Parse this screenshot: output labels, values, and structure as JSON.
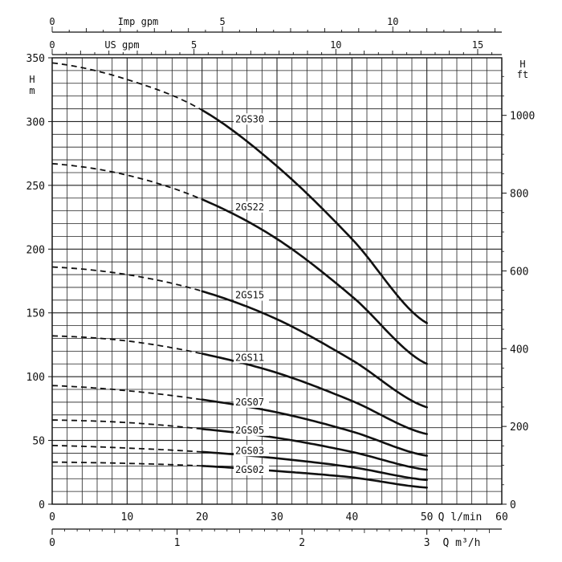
{
  "chart_data": {
    "type": "line",
    "axes": {
      "flow_lmin": {
        "label": "Q l/min",
        "min": 0,
        "max": 60,
        "ticks": [
          "0",
          "10",
          "20",
          "30",
          "40",
          "50",
          "60"
        ],
        "tick_values": [
          0,
          10,
          20,
          30,
          40,
          50,
          60
        ]
      },
      "flow_m3h": {
        "label": "Q m³/h",
        "min": 0,
        "max": 3.6,
        "ticks": [
          "0",
          "1",
          "2",
          "3"
        ],
        "tick_values": [
          0,
          1,
          2,
          3
        ]
      },
      "flow_imp_gpm": {
        "label": "Imp gpm",
        "min": 0,
        "max": 13.2,
        "ticks": [
          "0",
          "5",
          "10"
        ],
        "tick_values": [
          0,
          5,
          10
        ]
      },
      "flow_us_gpm": {
        "label": "US gpm",
        "min": 0,
        "max": 15.85,
        "ticks": [
          "0",
          "5",
          "10",
          "15"
        ],
        "tick_values": [
          0,
          5,
          10,
          15
        ]
      },
      "head_m": {
        "label_h": "H",
        "label_unit": "m",
        "min": 0,
        "max": 350,
        "ticks": [
          "0",
          "50",
          "100",
          "150",
          "200",
          "250",
          "300",
          "350"
        ],
        "tick_values": [
          0,
          50,
          100,
          150,
          200,
          250,
          300,
          350
        ]
      },
      "head_ft": {
        "label_h": "H",
        "label_unit": "ft",
        "min": 0,
        "max": 1148,
        "ticks": [
          "0",
          "200",
          "400",
          "600",
          "800",
          "1000"
        ],
        "tick_values": [
          0,
          200,
          400,
          600,
          800,
          1000
        ]
      }
    },
    "grid": true,
    "series": [
      {
        "name": "2GS30",
        "dashed_to": 20,
        "label_x": 24,
        "label_y": 302,
        "points": [
          [
            0,
            346
          ],
          [
            10,
            333
          ],
          [
            20,
            309
          ],
          [
            30,
            265
          ],
          [
            40,
            208
          ],
          [
            50,
            142
          ]
        ]
      },
      {
        "name": "2GS22",
        "dashed_to": 20,
        "label_x": 24,
        "label_y": 233,
        "points": [
          [
            0,
            267
          ],
          [
            10,
            258
          ],
          [
            20,
            239
          ],
          [
            30,
            208
          ],
          [
            40,
            163
          ],
          [
            50,
            110
          ]
        ]
      },
      {
        "name": "2GS15",
        "dashed_to": 20,
        "label_x": 24,
        "label_y": 164,
        "points": [
          [
            0,
            186
          ],
          [
            10,
            180
          ],
          [
            20,
            167
          ],
          [
            30,
            145
          ],
          [
            40,
            113
          ],
          [
            50,
            76
          ]
        ]
      },
      {
        "name": "2GS11",
        "dashed_to": 20,
        "label_x": 24,
        "label_y": 115,
        "points": [
          [
            0,
            132
          ],
          [
            10,
            128
          ],
          [
            20,
            118
          ],
          [
            30,
            103
          ],
          [
            40,
            81
          ],
          [
            50,
            55
          ]
        ]
      },
      {
        "name": "2GS07",
        "dashed_to": 20,
        "label_x": 24,
        "label_y": 80,
        "points": [
          [
            0,
            93
          ],
          [
            10,
            89
          ],
          [
            20,
            82
          ],
          [
            30,
            72
          ],
          [
            40,
            57
          ],
          [
            50,
            38
          ]
        ]
      },
      {
        "name": "2GS05",
        "dashed_to": 20,
        "label_x": 24,
        "label_y": 58,
        "points": [
          [
            0,
            66
          ],
          [
            10,
            64
          ],
          [
            20,
            59
          ],
          [
            30,
            52
          ],
          [
            40,
            41
          ],
          [
            50,
            27
          ]
        ]
      },
      {
        "name": "2GS03",
        "dashed_to": 20,
        "label_x": 24,
        "label_y": 42,
        "points": [
          [
            0,
            46
          ],
          [
            10,
            44
          ],
          [
            20,
            41
          ],
          [
            30,
            36
          ],
          [
            40,
            29
          ],
          [
            50,
            19
          ]
        ]
      },
      {
        "name": "2GS02",
        "dashed_to": 20,
        "label_x": 24,
        "label_y": 27,
        "points": [
          [
            0,
            33
          ],
          [
            10,
            32
          ],
          [
            20,
            30
          ],
          [
            30,
            26
          ],
          [
            40,
            21
          ],
          [
            50,
            13
          ]
        ]
      }
    ]
  }
}
